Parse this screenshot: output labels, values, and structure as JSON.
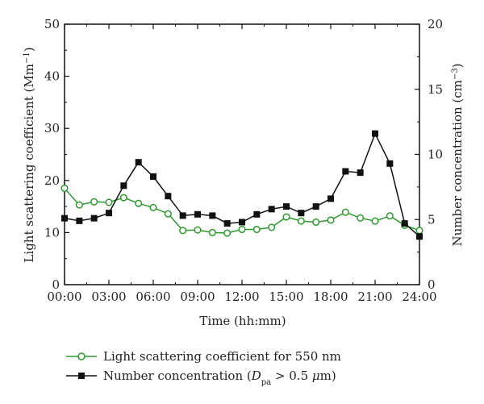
{
  "chart_data": {
    "type": "line",
    "title": "",
    "xlabel": "Time (hh:mm)",
    "ylabel_left": {
      "main": "Light scattering coefficient (Mm",
      "sup": "−1",
      "close": ")"
    },
    "ylabel_right": {
      "main": "Number concentration (cm",
      "sup": "−3",
      "close": ")"
    },
    "x_tick_labels": [
      "00:00",
      "03:00",
      "06:00",
      "09:00",
      "12:00",
      "15:00",
      "18:00",
      "21:00",
      "24:00"
    ],
    "x_tick_hours": [
      0,
      3,
      6,
      9,
      12,
      15,
      18,
      21,
      24
    ],
    "xlim": [
      0,
      24
    ],
    "ylim_left": [
      0,
      50
    ],
    "ylim_right": [
      0,
      20
    ],
    "y_ticks_left": [
      0,
      10,
      20,
      30,
      40,
      50
    ],
    "y_ticks_right": [
      0,
      5,
      10,
      15,
      20
    ],
    "grid": false,
    "legend_position": "bottom",
    "series": [
      {
        "name": "Light scattering coefficient for 550 nm",
        "axis": "left",
        "color": "#2e9a2e",
        "marker": "open-circle",
        "x": [
          0,
          1,
          2,
          3,
          4,
          5,
          6,
          7,
          8,
          9,
          10,
          11,
          12,
          13,
          14,
          15,
          16,
          17,
          18,
          19,
          20,
          21,
          22,
          23,
          24
        ],
        "values": [
          18.5,
          15.3,
          15.9,
          15.8,
          16.7,
          15.6,
          14.8,
          13.6,
          10.4,
          10.5,
          10.0,
          9.9,
          10.6,
          10.6,
          11.0,
          13.0,
          12.2,
          12.0,
          12.4,
          13.9,
          12.8,
          12.2,
          13.2,
          11.4,
          10.4
        ]
      },
      {
        "name": "Number concentration (",
        "name_italic": "D",
        "name_sub": "pa",
        "name_rest": " > 0.5 ",
        "name_mu": "μ",
        "name_end": "m)",
        "axis": "right",
        "color": "#111111",
        "marker": "filled-square",
        "x": [
          0,
          1,
          2,
          3,
          4,
          5,
          6,
          7,
          8,
          9,
          10,
          11,
          12,
          13,
          14,
          15,
          16,
          17,
          18,
          19,
          20,
          21,
          22,
          23,
          24
        ],
        "values": [
          5.1,
          4.9,
          5.1,
          5.5,
          7.6,
          9.4,
          8.3,
          6.8,
          5.3,
          5.4,
          5.3,
          4.7,
          4.8,
          5.4,
          5.8,
          6.0,
          5.5,
          6.0,
          6.6,
          8.7,
          8.6,
          11.6,
          9.3,
          4.7,
          3.7
        ]
      }
    ]
  }
}
